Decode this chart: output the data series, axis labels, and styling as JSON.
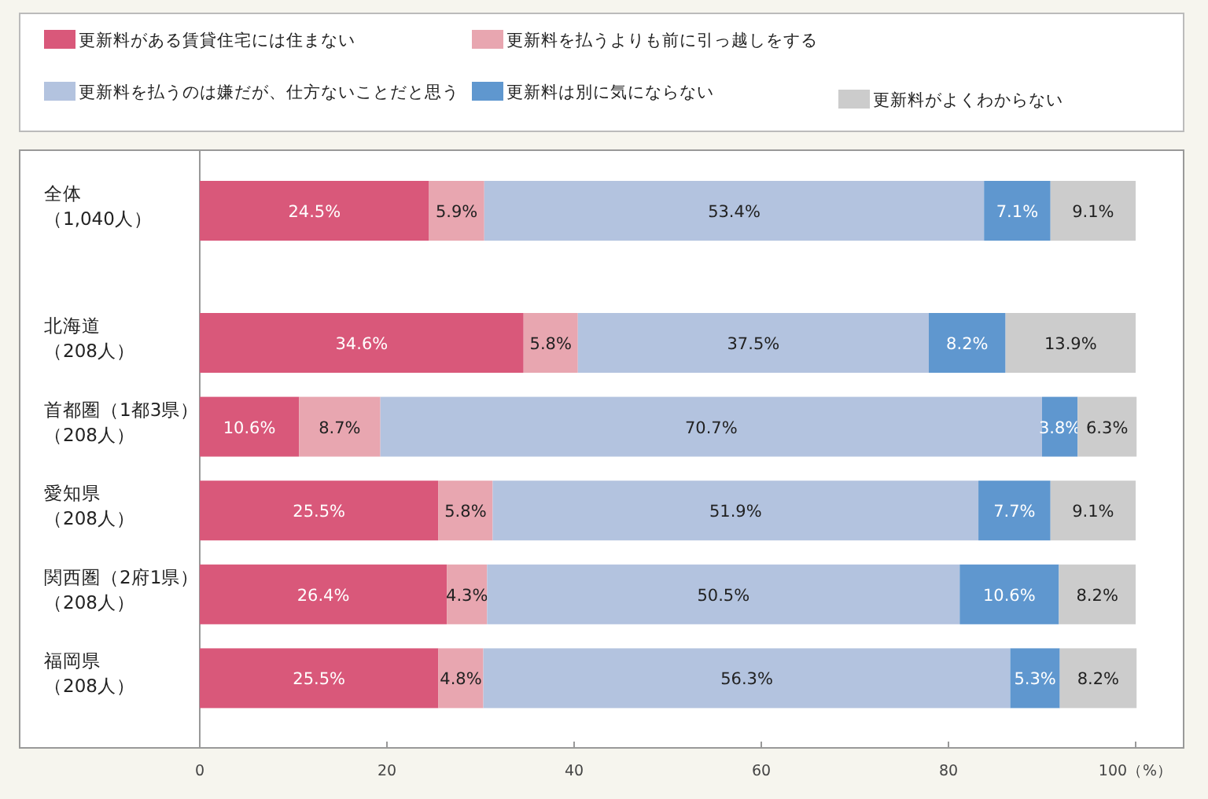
{
  "chart_data": {
    "type": "bar",
    "orientation": "horizontal",
    "stacked": true,
    "categories": [
      "全体（1,040人）",
      "北海道（208人）",
      "首都圏（1都3県）（208人）",
      "愛知県（208人）",
      "関西圏（2府1県）（208人）",
      "福岡県（208人）"
    ],
    "series": [
      {
        "name": "更新料がある賃貸住宅には住まない",
        "color": "#d9587a",
        "values": [
          24.5,
          34.6,
          10.6,
          25.5,
          26.4,
          25.5
        ],
        "value_labels": [
          "24.5%",
          "34.6%",
          "10.6%",
          "25.5%",
          "26.4%",
          "25.5%"
        ]
      },
      {
        "name": "更新料を払うよりも前に引っ越しをする",
        "color": "#e8a6b0",
        "values": [
          5.9,
          5.8,
          8.7,
          5.8,
          4.3,
          4.8
        ],
        "value_labels": [
          "5.9%",
          "5.8%",
          "8.7%",
          "5.8%",
          "4.3%",
          "4.8%"
        ]
      },
      {
        "name": "更新料を払うのは嫌だが、仕方ないことだと思う",
        "color": "#b3c3df",
        "values": [
          53.4,
          37.5,
          70.7,
          51.9,
          50.5,
          56.3
        ],
        "value_labels": [
          "53.4%",
          "37.5%",
          "70.7%",
          "51.9%",
          "50.5%",
          "56.3%"
        ]
      },
      {
        "name": "更新料は別に気にならない",
        "color": "#5f97cf",
        "values": [
          7.1,
          8.2,
          3.8,
          7.7,
          10.6,
          5.3
        ],
        "value_labels": [
          "7.1%",
          "8.2%",
          "3.8%",
          "7.7%",
          "10.6%",
          "5.3%"
        ]
      },
      {
        "name": "更新料がよくわからない",
        "color": "#cccccc",
        "values": [
          9.1,
          13.9,
          6.3,
          9.1,
          8.2,
          8.2
        ],
        "value_labels": [
          "9.1%",
          "13.9%",
          "6.3%",
          "9.1%",
          "8.2%",
          "8.2%"
        ]
      }
    ],
    "xlim": [
      0,
      100
    ],
    "xticks": [
      0,
      20,
      40,
      60,
      80,
      {
        "value": 100,
        "label": "100（%）"
      }
    ],
    "grid": false,
    "legend": "top"
  }
}
